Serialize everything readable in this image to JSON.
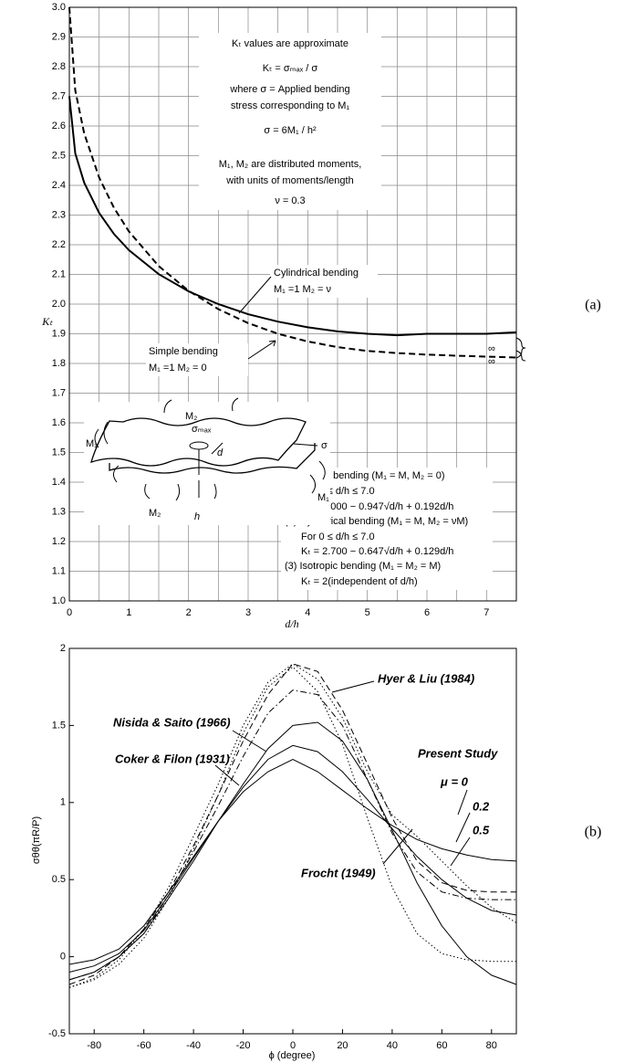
{
  "chart_data": [
    {
      "type": "line",
      "ylabel": "Kₜ",
      "xlabel": "d/h",
      "xlim": [
        0,
        7.5
      ],
      "ylim": [
        1,
        3
      ],
      "grid": true,
      "xticks": [
        0,
        1,
        2,
        3,
        4,
        5,
        6,
        7
      ],
      "x_minor_ticks": [
        0.5,
        1.5,
        2.5,
        3.5,
        4.5,
        5.5,
        6.5,
        7.5
      ],
      "yticks": [
        {
          "value": 1,
          "label": "1.0"
        },
        1.1,
        1.2,
        1.3,
        1.4,
        1.5,
        1.6,
        1.7,
        1.8,
        1.9,
        {
          "value": 2,
          "label": "2.0"
        },
        2.1,
        2.2,
        2.3,
        2.4,
        2.5,
        2.6,
        2.7,
        2.8,
        2.9,
        {
          "value": 3,
          "label": "3.0"
        }
      ],
      "x": [
        0,
        0.1,
        0.25,
        0.5,
        0.75,
        1,
        1.5,
        2,
        2.5,
        3,
        3.5,
        4,
        4.5,
        5,
        5.5,
        6,
        6.5,
        7,
        7.5
      ],
      "series": [
        {
          "color": "#000000",
          "dash": "dashed",
          "values": [
            3.0,
            2.72,
            2.575,
            2.426,
            2.324,
            2.245,
            2.128,
            2.045,
            1.983,
            1.936,
            1.9,
            1.874,
            1.855,
            1.842,
            1.835,
            1.83,
            1.826,
            1.823,
            1.82
          ]
        },
        {
          "color": "#000000",
          "dash": "solid",
          "values": [
            2.7,
            2.508,
            2.409,
            2.307,
            2.236,
            2.182,
            2.101,
            2.043,
            2.0,
            1.966,
            1.941,
            1.922,
            1.908,
            1.9,
            1.895,
            1.9,
            1.9,
            1.9,
            1.905
          ]
        }
      ],
      "annotations": [
        "Kₜ values are approximate",
        "Kₜ = σₘₐₓ / σ",
        "where σ = Applied bending",
        "stress corresponding to M₁",
        "σ = 6M₁ / h²",
        "M₁, M₂ are distributed moments,",
        "with units of moments/length",
        "ν = 0.3",
        "Cylindrical bending",
        "M₁ =1      M₂ = ν",
        "Simple bending",
        "M₁ =1      M₂ = 0",
        "(1) Simple bending (M₁ = M, M₂ = 0)",
        "For 0 ≤ d/h ≤ 7.0",
        "Kₜ = 3.000 − 0.947√d/h + 0.192d/h",
        "(2) Cylindrical bending (M₁ = M, M₂ = νM)",
        "For 0 ≤ d/h ≤ 7.0",
        "Kₜ = 2.700 − 0.647√d/h + 0.129d/h",
        "(3) Isotropic bending (M₁ = M₂ = M)",
        "Kₜ = 2(independent of d/h)",
        "∞",
        "∞"
      ],
      "diagram_labels": [
        "M₂",
        "M₁",
        "σₘₐₓ",
        "d",
        "σ",
        "M₁",
        "M₂",
        "h"
      ],
      "panel_label": "(a)"
    },
    {
      "type": "line",
      "ylabel": "σθθ(πR/P)",
      "xlabel": "ϕ (degree)",
      "xlim": [
        -90,
        90
      ],
      "ylim": [
        -0.5,
        2
      ],
      "grid": false,
      "xticks": [
        -80,
        -60,
        -40,
        -20,
        0,
        20,
        40,
        60,
        80
      ],
      "yticks": [
        -0.5,
        0,
        0.5,
        1,
        1.5,
        2
      ],
      "x": [
        -90,
        -80,
        -70,
        -60,
        -50,
        -40,
        -30,
        -20,
        -10,
        0,
        10,
        20,
        30,
        40,
        50,
        60,
        70,
        80,
        90
      ],
      "series": [
        {
          "name": "μ = 0",
          "color": "#000000",
          "dash": "solid",
          "values": [
            -0.05,
            -0.02,
            0.05,
            0.2,
            0.42,
            0.65,
            0.88,
            1.07,
            1.2,
            1.28,
            1.2,
            1.08,
            0.96,
            0.85,
            0.76,
            0.7,
            0.66,
            0.63,
            0.62
          ]
        },
        {
          "name": "0.2",
          "color": "#000000",
          "dash": "solid",
          "values": [
            -0.1,
            -0.06,
            0.02,
            0.17,
            0.4,
            0.64,
            0.88,
            1.1,
            1.28,
            1.37,
            1.33,
            1.2,
            1.02,
            0.83,
            0.65,
            0.5,
            0.38,
            0.3,
            0.27
          ]
        },
        {
          "name": "0.5",
          "color": "#000000",
          "dash": "solid",
          "values": [
            -0.15,
            -0.1,
            0.0,
            0.15,
            0.38,
            0.62,
            0.88,
            1.12,
            1.35,
            1.5,
            1.52,
            1.4,
            1.15,
            0.82,
            0.48,
            0.2,
            0.0,
            -0.12,
            -0.18
          ]
        },
        {
          "name": "Nisida & Saito (1966)",
          "color": "#000000",
          "dash": "dashed",
          "values": [
            -0.18,
            -0.12,
            0.0,
            0.18,
            0.42,
            0.72,
            1.05,
            1.4,
            1.7,
            1.9,
            1.85,
            1.6,
            1.25,
            0.9,
            0.62,
            0.48,
            0.43,
            0.42,
            0.42
          ]
        },
        {
          "name": "Hyer & Liu (1984)",
          "color": "#000000",
          "dash": "dashdot",
          "values": [
            -0.15,
            -0.1,
            0.0,
            0.15,
            0.4,
            0.68,
            0.98,
            1.3,
            1.58,
            1.73,
            1.7,
            1.5,
            1.15,
            0.8,
            0.55,
            0.42,
            0.38,
            0.37,
            0.37
          ]
        },
        {
          "name": "Coker & Filon (1931)",
          "color": "#000000",
          "dash": "dotted",
          "values": [
            -0.2,
            -0.14,
            -0.02,
            0.18,
            0.45,
            0.78,
            1.12,
            1.5,
            1.78,
            1.9,
            1.8,
            1.55,
            1.2,
            0.92,
            0.78,
            0.62,
            0.46,
            0.32,
            0.22
          ]
        },
        {
          "name": "Frocht (1949)",
          "color": "#000000",
          "dash": "dotted",
          "values": [
            -0.2,
            -0.15,
            -0.05,
            0.12,
            0.38,
            0.7,
            1.05,
            1.45,
            1.75,
            1.88,
            1.72,
            1.38,
            0.9,
            0.45,
            0.15,
            0.02,
            -0.02,
            -0.03,
            -0.03
          ]
        }
      ],
      "annotations": [
        "Present Study"
      ],
      "panel_label": "(b)"
    }
  ]
}
